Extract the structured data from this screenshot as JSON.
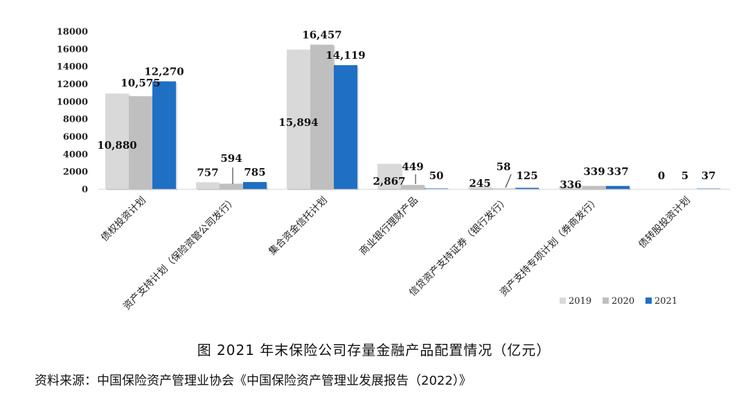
{
  "caption": "图 2021 年末保险公司存量金融产品配置情况（亿元）",
  "source": "资料来源：中国保险资产管理业协会《中国保险资产管理业发展报告（2022）》",
  "chart_data": {
    "type": "bar",
    "categories": [
      "债权投资计划",
      "资产支持计划（保险资管公司发行）",
      "集合资金信托计划",
      "商业银行理财产品",
      "信贷资产支持证券（银行发行）",
      "资产支持专项计划（券商发行）",
      "债转股投资计划"
    ],
    "series": [
      {
        "name": "2019",
        "color": "#d9d9d9",
        "values": [
          10880,
          757,
          15894,
          2867,
          245,
          336,
          0
        ]
      },
      {
        "name": "2020",
        "color": "#bfbfbf",
        "values": [
          10575,
          594,
          16457,
          449,
          58,
          339,
          5
        ]
      },
      {
        "name": "2021",
        "color": "#1f6fc5",
        "values": [
          12270,
          785,
          14119,
          50,
          125,
          337,
          37
        ]
      }
    ],
    "data_labels": [
      [
        "10,880",
        "10,575",
        "12,270"
      ],
      [
        "757",
        "594",
        "785"
      ],
      [
        "15,894",
        "16,457",
        "14,119"
      ],
      [
        "2,867",
        "449",
        "50"
      ],
      [
        "245",
        "58",
        "125"
      ],
      [
        "336",
        "339",
        "337"
      ],
      [
        "0",
        "5",
        "37"
      ]
    ],
    "y_ticks": [
      "0",
      "2000",
      "4000",
      "6000",
      "8000",
      "10000",
      "12000",
      "14000",
      "16000",
      "18000"
    ],
    "ylim": [
      0,
      18000
    ],
    "legend_position": "bottom-right",
    "grid": false
  }
}
